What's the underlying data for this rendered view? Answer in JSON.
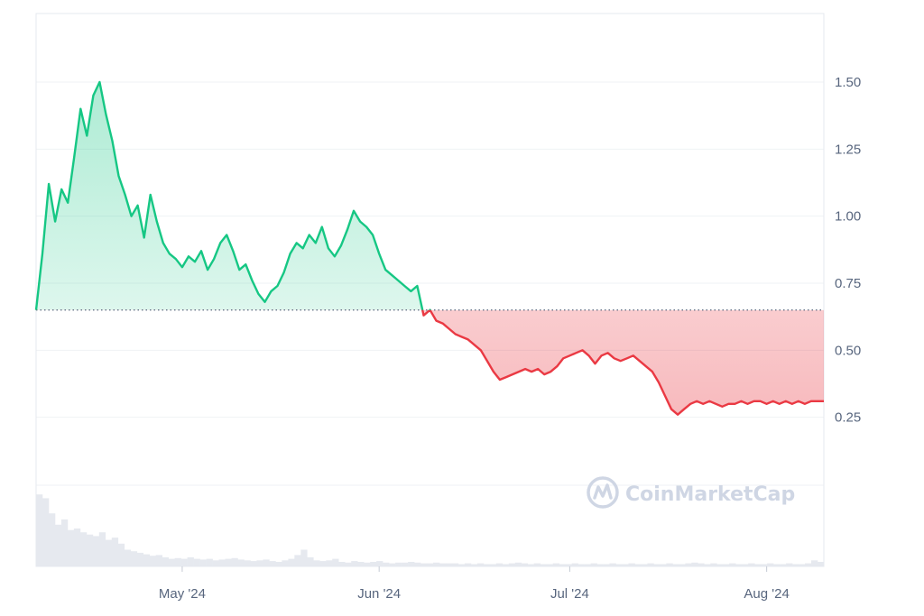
{
  "watermark": {
    "text": "CoinMarketCap"
  },
  "colors": {
    "up_line": "#16c784",
    "down_line": "#ea3943",
    "baseline": "#58667e",
    "grid": "#eff2f5",
    "volume": "#e6e9ef"
  },
  "chart_data": {
    "type": "area",
    "baseline_value": 0.65,
    "y_ticks": [
      "0.25",
      "0.50",
      "0.75",
      "1.00",
      "1.25",
      "1.50"
    ],
    "ylim": [
      0,
      1.75
    ],
    "x_ticks": [
      "May '24",
      "Jun '24",
      "Jul '24",
      "Aug '24"
    ],
    "xlim": [
      "2024-04-08",
      "2024-08-10"
    ],
    "grid": true,
    "series": [
      {
        "x": [
          "2024-04-08",
          "2024-04-09",
          "2024-04-10",
          "2024-04-11",
          "2024-04-12",
          "2024-04-13",
          "2024-04-14",
          "2024-04-15",
          "2024-04-16",
          "2024-04-17",
          "2024-04-18",
          "2024-04-19",
          "2024-04-20",
          "2024-04-21",
          "2024-04-22",
          "2024-04-23",
          "2024-04-24",
          "2024-04-25",
          "2024-04-26",
          "2024-04-27",
          "2024-04-28",
          "2024-04-29",
          "2024-04-30",
          "2024-05-01",
          "2024-05-02",
          "2024-05-03",
          "2024-05-04",
          "2024-05-05",
          "2024-05-06",
          "2024-05-07",
          "2024-05-08",
          "2024-05-09",
          "2024-05-10",
          "2024-05-11",
          "2024-05-12",
          "2024-05-13",
          "2024-05-14",
          "2024-05-15",
          "2024-05-16",
          "2024-05-17",
          "2024-05-18",
          "2024-05-19",
          "2024-05-20",
          "2024-05-21",
          "2024-05-22",
          "2024-05-23",
          "2024-05-24",
          "2024-05-25",
          "2024-05-26",
          "2024-05-27",
          "2024-05-28",
          "2024-05-29",
          "2024-05-30",
          "2024-05-31",
          "2024-06-01",
          "2024-06-02",
          "2024-06-03",
          "2024-06-04",
          "2024-06-05",
          "2024-06-06",
          "2024-06-07",
          "2024-06-08",
          "2024-06-09",
          "2024-06-10",
          "2024-06-11",
          "2024-06-12",
          "2024-06-13",
          "2024-06-14",
          "2024-06-15",
          "2024-06-16",
          "2024-06-17",
          "2024-06-18",
          "2024-06-19",
          "2024-06-20",
          "2024-06-21",
          "2024-06-22",
          "2024-06-23",
          "2024-06-24",
          "2024-06-25",
          "2024-06-26",
          "2024-06-27",
          "2024-06-28",
          "2024-06-29",
          "2024-06-30",
          "2024-07-01",
          "2024-07-02",
          "2024-07-03",
          "2024-07-04",
          "2024-07-05",
          "2024-07-06",
          "2024-07-07",
          "2024-07-08",
          "2024-07-09",
          "2024-07-10",
          "2024-07-11",
          "2024-07-12",
          "2024-07-13",
          "2024-07-14",
          "2024-07-15",
          "2024-07-16",
          "2024-07-17",
          "2024-07-18",
          "2024-07-19",
          "2024-07-20",
          "2024-07-21",
          "2024-07-22",
          "2024-07-23",
          "2024-07-24",
          "2024-07-25",
          "2024-07-26",
          "2024-07-27",
          "2024-07-28",
          "2024-07-29",
          "2024-07-30",
          "2024-07-31",
          "2024-08-01",
          "2024-08-02",
          "2024-08-03",
          "2024-08-04",
          "2024-08-05",
          "2024-08-06",
          "2024-08-07",
          "2024-08-08",
          "2024-08-09",
          "2024-08-10"
        ],
        "values": [
          0.65,
          0.86,
          1.12,
          0.98,
          1.1,
          1.05,
          1.22,
          1.4,
          1.3,
          1.45,
          1.5,
          1.38,
          1.28,
          1.15,
          1.08,
          1.0,
          1.04,
          0.92,
          1.08,
          0.98,
          0.9,
          0.86,
          0.84,
          0.81,
          0.85,
          0.83,
          0.87,
          0.8,
          0.84,
          0.9,
          0.93,
          0.87,
          0.8,
          0.82,
          0.76,
          0.71,
          0.68,
          0.72,
          0.74,
          0.79,
          0.86,
          0.9,
          0.88,
          0.93,
          0.9,
          0.96,
          0.88,
          0.85,
          0.89,
          0.95,
          1.02,
          0.98,
          0.96,
          0.93,
          0.86,
          0.8,
          0.78,
          0.76,
          0.74,
          0.72,
          0.74,
          0.63,
          0.65,
          0.61,
          0.6,
          0.58,
          0.56,
          0.55,
          0.54,
          0.52,
          0.5,
          0.46,
          0.42,
          0.39,
          0.4,
          0.41,
          0.42,
          0.43,
          0.42,
          0.43,
          0.41,
          0.42,
          0.44,
          0.47,
          0.48,
          0.49,
          0.5,
          0.48,
          0.45,
          0.48,
          0.49,
          0.47,
          0.46,
          0.47,
          0.48,
          0.46,
          0.44,
          0.42,
          0.38,
          0.33,
          0.28,
          0.26,
          0.28,
          0.3,
          0.31,
          0.3,
          0.31,
          0.3,
          0.29,
          0.3,
          0.3,
          0.31,
          0.3,
          0.31,
          0.31,
          0.3,
          0.31,
          0.3,
          0.31,
          0.3,
          0.31,
          0.3,
          0.31,
          0.31,
          0.31
        ]
      }
    ],
    "volume": [
      0.95,
      0.9,
      0.7,
      0.55,
      0.62,
      0.48,
      0.5,
      0.45,
      0.42,
      0.4,
      0.45,
      0.35,
      0.38,
      0.3,
      0.22,
      0.2,
      0.18,
      0.16,
      0.14,
      0.15,
      0.12,
      0.1,
      0.11,
      0.1,
      0.12,
      0.1,
      0.09,
      0.1,
      0.08,
      0.09,
      0.1,
      0.11,
      0.09,
      0.08,
      0.07,
      0.08,
      0.09,
      0.07,
      0.06,
      0.08,
      0.1,
      0.15,
      0.22,
      0.12,
      0.08,
      0.07,
      0.08,
      0.1,
      0.06,
      0.05,
      0.07,
      0.06,
      0.05,
      0.06,
      0.07,
      0.05,
      0.04,
      0.05,
      0.05,
      0.06,
      0.05,
      0.04,
      0.04,
      0.05,
      0.04,
      0.04,
      0.04,
      0.03,
      0.04,
      0.03,
      0.04,
      0.03,
      0.03,
      0.04,
      0.03,
      0.04,
      0.05,
      0.04,
      0.03,
      0.04,
      0.03,
      0.03,
      0.04,
      0.03,
      0.03,
      0.04,
      0.03,
      0.03,
      0.04,
      0.03,
      0.03,
      0.04,
      0.03,
      0.03,
      0.04,
      0.03,
      0.03,
      0.04,
      0.03,
      0.03,
      0.04,
      0.03,
      0.03,
      0.04,
      0.05,
      0.04,
      0.03,
      0.04,
      0.03,
      0.03,
      0.04,
      0.03,
      0.03,
      0.04,
      0.03,
      0.03,
      0.04,
      0.03,
      0.03,
      0.04,
      0.03,
      0.03,
      0.04,
      0.08,
      0.06
    ]
  }
}
